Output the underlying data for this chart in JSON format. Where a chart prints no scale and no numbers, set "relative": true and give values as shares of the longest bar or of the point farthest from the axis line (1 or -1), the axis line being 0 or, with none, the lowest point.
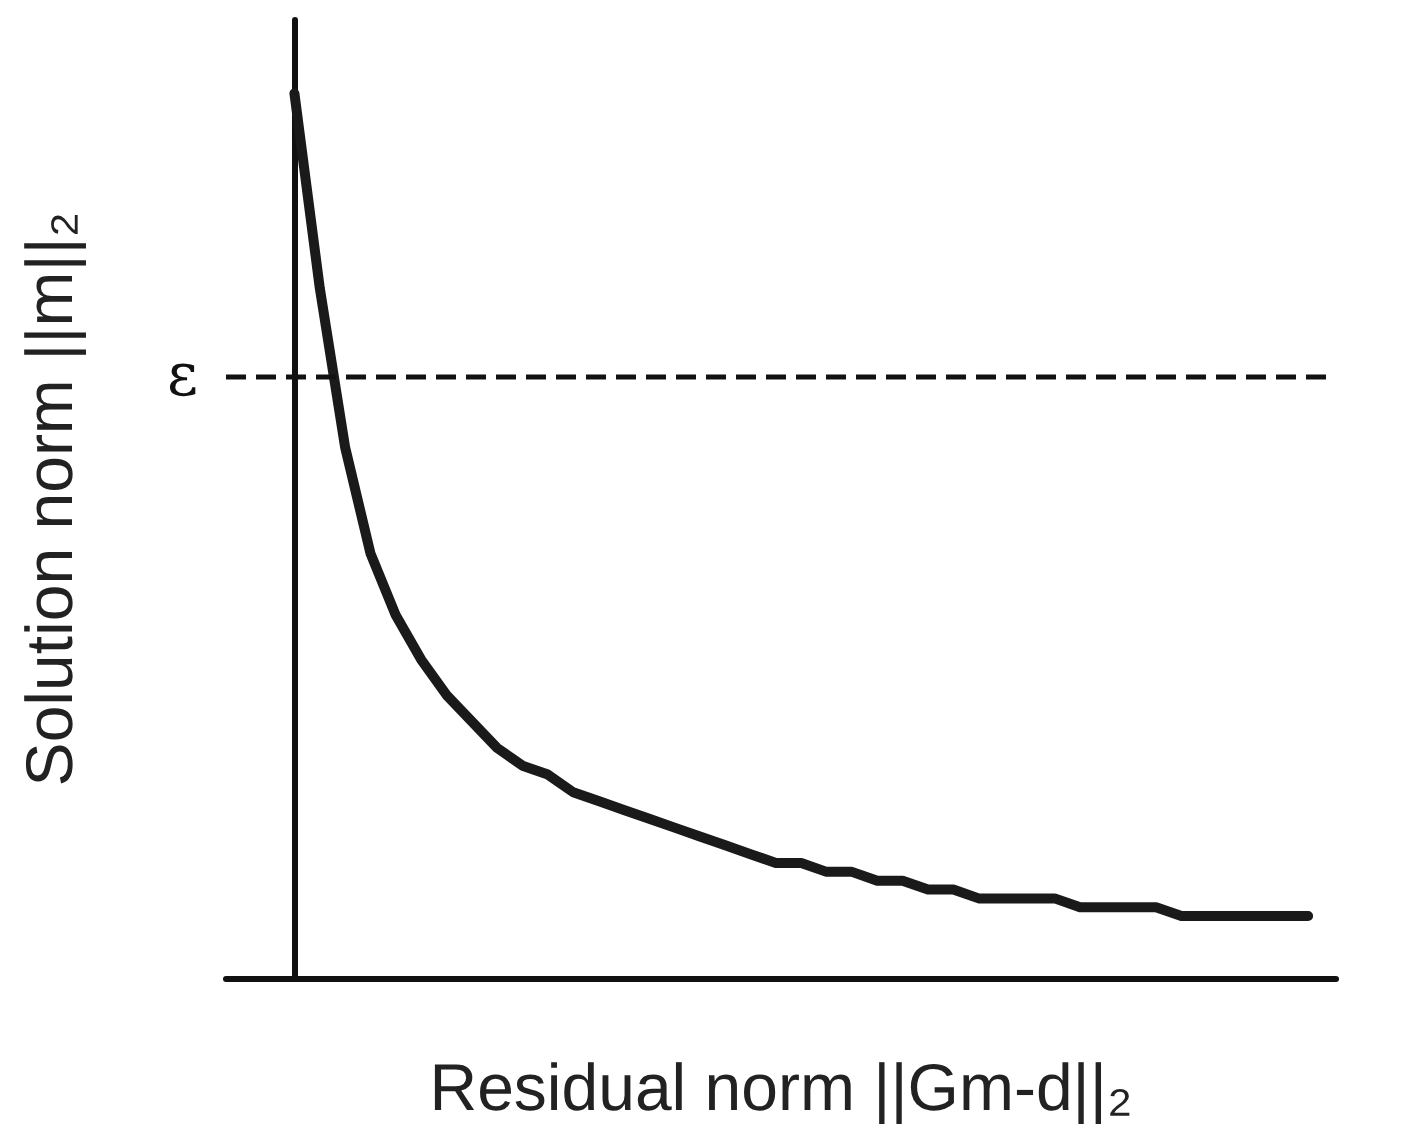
{
  "chart_data": {
    "type": "line",
    "relative": true,
    "xlabel": "Residual norm ||Gm-d||₂",
    "ylabel": "Solution norm ||m||₂",
    "categories": [
      null,
      null,
      null,
      null,
      null,
      null,
      null,
      null,
      null,
      null,
      null,
      null,
      null,
      null,
      null,
      null,
      null,
      null,
      null,
      null,
      null,
      null,
      null,
      null,
      null,
      null,
      null,
      null,
      null,
      null,
      null,
      null,
      null,
      null,
      null,
      null,
      null,
      null,
      null,
      null,
      null
    ],
    "series": [
      {
        "color": "#1a1a1a",
        "values": [
          1,
          0.78,
          0.6,
          0.48,
          0.41,
          0.36,
          0.32,
          0.29,
          0.26,
          0.24,
          0.23,
          0.21,
          0.2,
          0.19,
          0.18,
          0.17,
          0.16,
          0.15,
          0.14,
          0.13,
          0.13,
          0.12,
          0.12,
          0.11,
          0.11,
          0.1,
          0.1,
          0.09,
          0.09,
          0.09,
          0.09,
          0.08,
          0.08,
          0.08,
          0.08,
          0.07,
          0.07,
          0.07,
          0.07,
          0.07,
          0.07
        ]
      }
    ],
    "ref_lines": [
      {
        "axis": "y",
        "value": 0.68,
        "label": "ε",
        "line_style": "dashed"
      }
    ],
    "marker": "none",
    "line_style": "solid"
  }
}
